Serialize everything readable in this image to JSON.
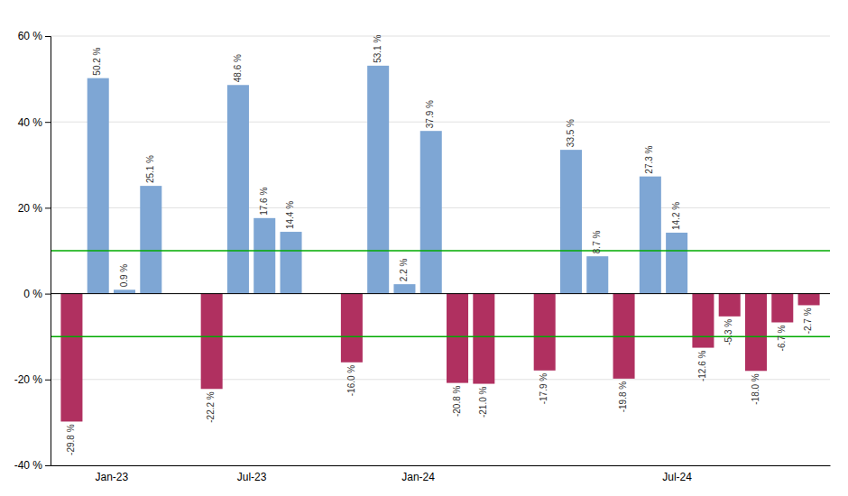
{
  "chart_data": {
    "type": "bar",
    "categories": [
      "Jan-23",
      "Jul-23",
      "Jan-24",
      "Jul-24"
    ],
    "values": [
      [
        -29.8,
        50.2,
        0.9,
        25.1
      ],
      [
        -22.2,
        48.6,
        17.6,
        14.4
      ],
      [
        -16.0,
        53.1,
        2.2,
        37.9,
        -20.8,
        -21.0
      ],
      [
        -17.9,
        33.5,
        8.7,
        -19.8,
        27.3,
        14.2,
        -12.6,
        -5.3,
        -18.0,
        -6.7,
        -2.7
      ]
    ],
    "value_labels": [
      [
        "-29.8 %",
        "50.2 %",
        "0.9 %",
        "25.1 %"
      ],
      [
        "-22.2 %",
        "48.6 %",
        "17.6 %",
        "14.4 %"
      ],
      [
        "-16.0 %",
        "53.1 %",
        "2.2 %",
        "37.9 %",
        "-20.8 %",
        "-21.0 %"
      ],
      [
        "-17.9 %",
        "33.5 %",
        "8.7 %",
        "-19.8 %",
        "27.3 %",
        "14.2 %",
        "-12.6 %",
        "-5.3 %",
        "-18.0 %",
        "-6.7 %",
        "-2.7 %"
      ]
    ],
    "colors": [
      [
        "#B03060",
        "#7EA6D4",
        "#7EA6D4",
        "#7EA6D4"
      ],
      [
        "#B03060",
        "#7EA6D4",
        "#7EA6D4",
        "#7EA6D4"
      ],
      [
        "#B03060",
        "#7EA6D4",
        "#7EA6D4",
        "#7EA6D4",
        "#B03060",
        "#B03060"
      ],
      [
        "#B03060",
        "#7EA6D4",
        "#7EA6D4",
        "#B03060",
        "#7EA6D4",
        "#7EA6D4",
        "#B03060",
        "#B03060",
        "#B03060",
        "#B03060",
        "#B03060"
      ]
    ],
    "reference_lines": [
      {
        "value": 10.0,
        "color": "#00AA00"
      },
      {
        "value": -10.0,
        "color": "#00AA00"
      }
    ],
    "ylim": [
      -40,
      60
    ],
    "yticks": [
      {
        "value": -40,
        "label": "-40 %"
      },
      {
        "value": -20,
        "label": "-20 %"
      },
      {
        "value": 0,
        "label": "0 %"
      },
      {
        "value": 20,
        "label": "20 %"
      },
      {
        "value": 40,
        "label": "40 %"
      },
      {
        "value": 60,
        "label": "60 %"
      }
    ],
    "grid": true,
    "data_labels": true
  }
}
